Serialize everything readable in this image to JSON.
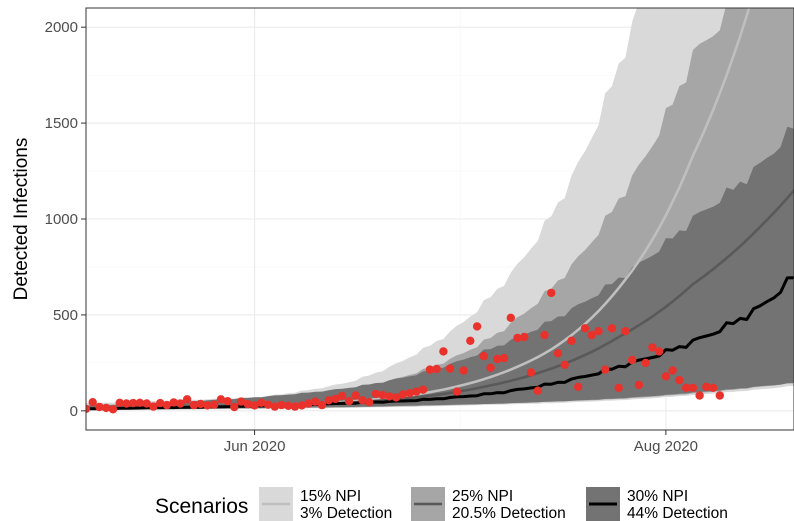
{
  "chart_data": {
    "type": "line",
    "title": "",
    "xlabel": "",
    "ylabel": "Detected Infections",
    "x_range": [
      "2020-05-07",
      "2020-08-20"
    ],
    "ylim": [
      -100,
      2100
    ],
    "x_ticks": [
      {
        "date": "2020-06-01",
        "label": "Jun 2020"
      },
      {
        "date": "2020-08-01",
        "label": "Aug 2020"
      }
    ],
    "y_ticks": [
      0,
      500,
      1000,
      1500,
      2000
    ],
    "grid": true,
    "legend": {
      "title": "Scenarios",
      "position": "bottom",
      "entries": [
        {
          "line1": "15% NPI",
          "line2": "3% Detection",
          "fill": "#d9d9d9",
          "line": "#bfbfbf"
        },
        {
          "line1": "25% NPI",
          "line2": "20.5% Detection",
          "fill": "#a6a6a6",
          "line": "#595959"
        },
        {
          "line1": "30% NPI",
          "line2": "44% Detection",
          "fill": "#737373",
          "line": "#000000"
        }
      ]
    },
    "series": [
      {
        "name": "15% NPI 3% Detection",
        "color": "#bfbfbf",
        "band_color": "#d9d9d9",
        "x": [
          "2020-05-07",
          "2020-06-01",
          "2020-06-15",
          "2020-06-25",
          "2020-07-05",
          "2020-07-15",
          "2020-07-25",
          "2020-08-05",
          "2020-08-15",
          "2020-08-20"
        ],
        "mean": [
          12,
          25,
          48,
          85,
          165,
          320,
          640,
          1330,
          2300,
          3000
        ],
        "lower": [
          5,
          10,
          16,
          22,
          30,
          40,
          55,
          82,
          112,
          130
        ],
        "upper": [
          40,
          70,
          150,
          300,
          560,
          1020,
          1800,
          3200,
          5000,
          6000
        ]
      },
      {
        "name": "25% NPI 20.5% Detection",
        "color": "#595959",
        "band_color": "#a6a6a6",
        "x": [
          "2020-05-07",
          "2020-06-01",
          "2020-06-15",
          "2020-06-25",
          "2020-07-05",
          "2020-07-15",
          "2020-07-25",
          "2020-08-05",
          "2020-08-15",
          "2020-08-20"
        ],
        "mean": [
          12,
          24,
          42,
          70,
          125,
          220,
          385,
          660,
          960,
          1150
        ],
        "lower": [
          5,
          12,
          18,
          25,
          35,
          47,
          62,
          90,
          125,
          145
        ],
        "upper": [
          30,
          60,
          110,
          200,
          360,
          640,
          1100,
          1850,
          2300,
          2600
        ]
      },
      {
        "name": "30% NPI 44% Detection",
        "color": "#000000",
        "band_color": "#737373",
        "x": [
          "2020-05-07",
          "2020-05-15",
          "2020-06-01",
          "2020-06-15",
          "2020-06-25",
          "2020-07-05",
          "2020-07-15",
          "2020-07-25",
          "2020-08-05",
          "2020-08-10",
          "2020-08-15",
          "2020-08-20"
        ],
        "mean": [
          10,
          15,
          25,
          40,
          55,
          85,
          140,
          230,
          360,
          440,
          540,
          700
        ],
        "lower": [
          5,
          10,
          15,
          20,
          28,
          35,
          48,
          65,
          95,
          110,
          128,
          145
        ],
        "upper": [
          25,
          38,
          70,
          120,
          190,
          310,
          470,
          690,
          1000,
          1130,
          1280,
          1480
        ]
      }
    ],
    "observed": {
      "name": "Observed",
      "color": "#e8322b",
      "points": [
        [
          "2020-05-07",
          10
        ],
        [
          "2020-05-08",
          45
        ],
        [
          "2020-05-09",
          20
        ],
        [
          "2020-05-10",
          15
        ],
        [
          "2020-05-11",
          8
        ],
        [
          "2020-05-12",
          42
        ],
        [
          "2020-05-13",
          38
        ],
        [
          "2020-05-14",
          40
        ],
        [
          "2020-05-15",
          42
        ],
        [
          "2020-05-16",
          38
        ],
        [
          "2020-05-17",
          22
        ],
        [
          "2020-05-18",
          40
        ],
        [
          "2020-05-19",
          30
        ],
        [
          "2020-05-20",
          44
        ],
        [
          "2020-05-21",
          38
        ],
        [
          "2020-05-22",
          60
        ],
        [
          "2020-05-23",
          30
        ],
        [
          "2020-05-24",
          36
        ],
        [
          "2020-05-25",
          28
        ],
        [
          "2020-05-26",
          32
        ],
        [
          "2020-05-27",
          60
        ],
        [
          "2020-05-28",
          50
        ],
        [
          "2020-05-29",
          20
        ],
        [
          "2020-05-30",
          48
        ],
        [
          "2020-05-31",
          35
        ],
        [
          "2020-06-01",
          28
        ],
        [
          "2020-06-02",
          42
        ],
        [
          "2020-06-03",
          32
        ],
        [
          "2020-06-04",
          22
        ],
        [
          "2020-06-05",
          30
        ],
        [
          "2020-06-06",
          26
        ],
        [
          "2020-06-07",
          22
        ],
        [
          "2020-06-08",
          28
        ],
        [
          "2020-06-09",
          38
        ],
        [
          "2020-06-10",
          48
        ],
        [
          "2020-06-11",
          30
        ],
        [
          "2020-06-12",
          55
        ],
        [
          "2020-06-13",
          62
        ],
        [
          "2020-06-14",
          78
        ],
        [
          "2020-06-15",
          50
        ],
        [
          "2020-06-16",
          80
        ],
        [
          "2020-06-17",
          55
        ],
        [
          "2020-06-18",
          45
        ],
        [
          "2020-06-19",
          88
        ],
        [
          "2020-06-20",
          82
        ],
        [
          "2020-06-21",
          75
        ],
        [
          "2020-06-22",
          70
        ],
        [
          "2020-06-23",
          85
        ],
        [
          "2020-06-24",
          92
        ],
        [
          "2020-06-25",
          100
        ],
        [
          "2020-06-26",
          110
        ],
        [
          "2020-06-27",
          215
        ],
        [
          "2020-06-28",
          218
        ],
        [
          "2020-06-29",
          310
        ],
        [
          "2020-06-30",
          220
        ],
        [
          "2020-07-01",
          100
        ],
        [
          "2020-07-02",
          210
        ],
        [
          "2020-07-03",
          365
        ],
        [
          "2020-07-04",
          440
        ],
        [
          "2020-07-05",
          285
        ],
        [
          "2020-07-06",
          225
        ],
        [
          "2020-07-07",
          270
        ],
        [
          "2020-07-08",
          275
        ],
        [
          "2020-07-09",
          485
        ],
        [
          "2020-07-10",
          380
        ],
        [
          "2020-07-11",
          385
        ],
        [
          "2020-07-12",
          200
        ],
        [
          "2020-07-13",
          105
        ],
        [
          "2020-07-14",
          395
        ],
        [
          "2020-07-15",
          615
        ],
        [
          "2020-07-16",
          300
        ],
        [
          "2020-07-17",
          240
        ],
        [
          "2020-07-18",
          365
        ],
        [
          "2020-07-19",
          125
        ],
        [
          "2020-07-20",
          430
        ],
        [
          "2020-07-21",
          395
        ],
        [
          "2020-07-22",
          415
        ],
        [
          "2020-07-23",
          215
        ],
        [
          "2020-07-24",
          430
        ],
        [
          "2020-07-25",
          120
        ],
        [
          "2020-07-26",
          415
        ],
        [
          "2020-07-27",
          265
        ],
        [
          "2020-07-28",
          135
        ],
        [
          "2020-07-29",
          250
        ],
        [
          "2020-07-30",
          330
        ],
        [
          "2020-07-31",
          310
        ],
        [
          "2020-08-01",
          180
        ],
        [
          "2020-08-02",
          210
        ],
        [
          "2020-08-03",
          160
        ],
        [
          "2020-08-04",
          120
        ],
        [
          "2020-08-05",
          120
        ],
        [
          "2020-08-06",
          80
        ],
        [
          "2020-08-07",
          125
        ],
        [
          "2020-08-08",
          120
        ],
        [
          "2020-08-09",
          80
        ]
      ]
    }
  }
}
